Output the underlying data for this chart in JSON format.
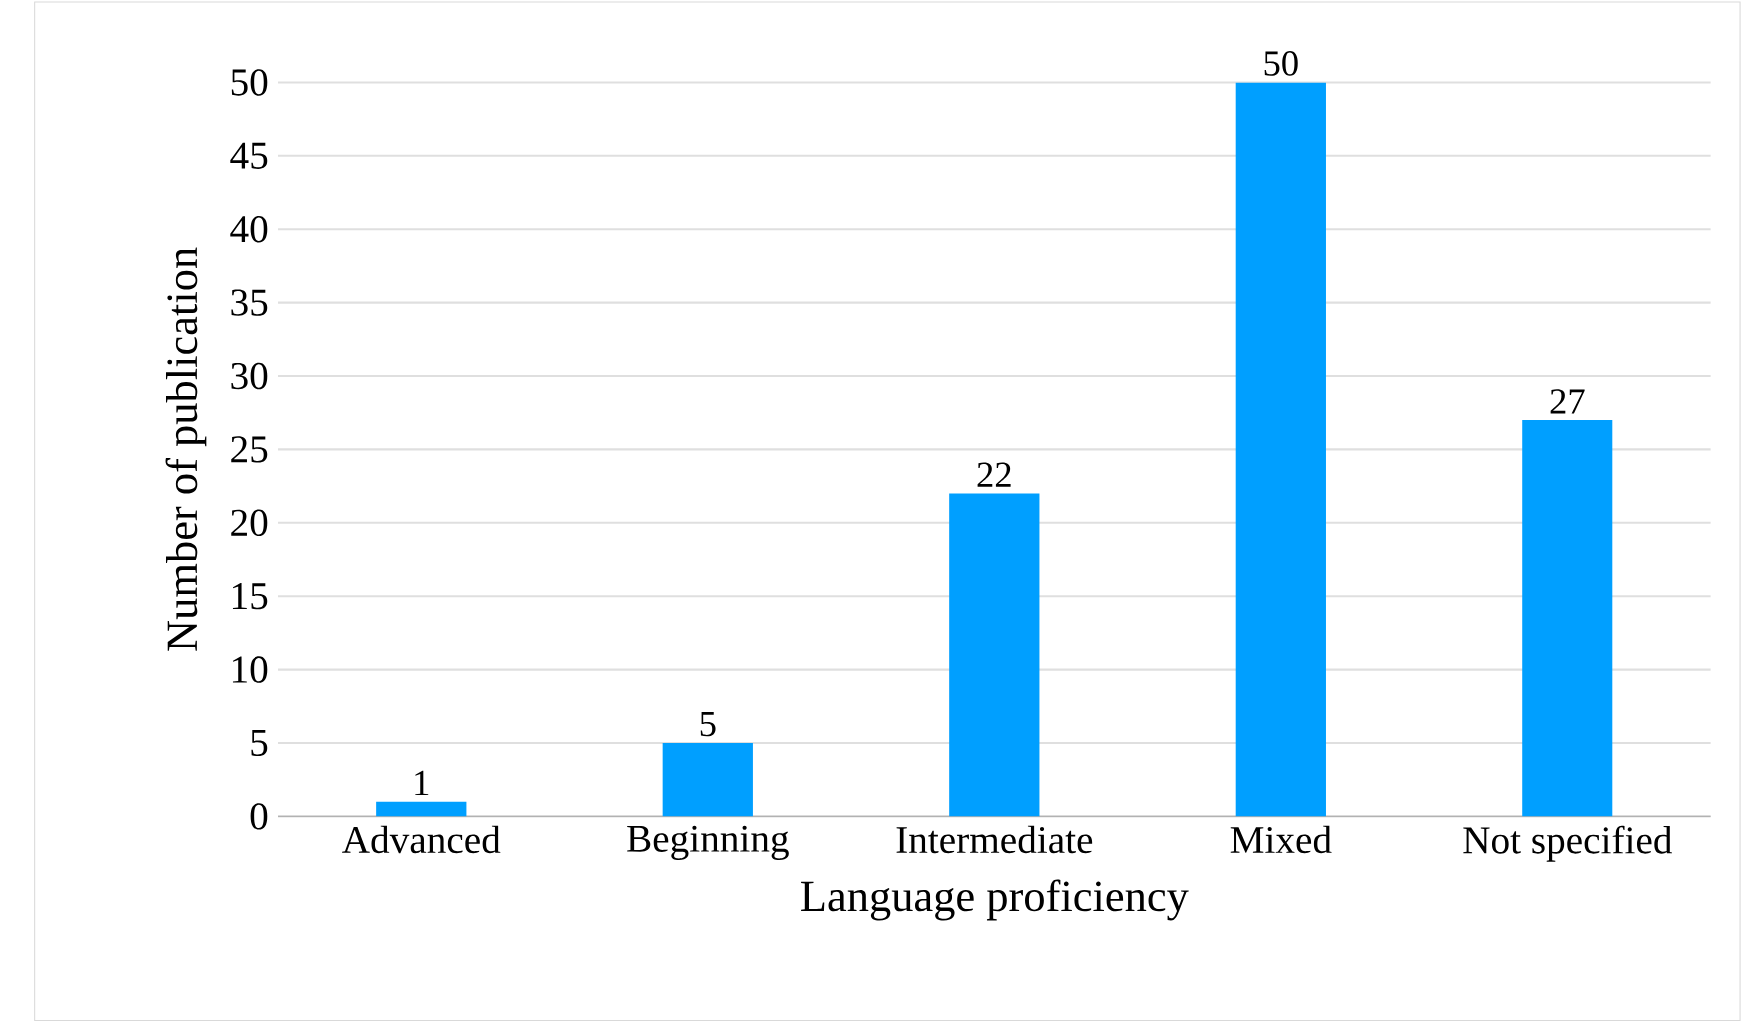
{
  "chart_data": {
    "type": "bar",
    "xlabel": "Language proficiency",
    "ylabel": "Number of publication",
    "categories": [
      "Advanced",
      "Beginning",
      "Intermediate",
      "Mixed",
      "Not specified"
    ],
    "values": [
      1,
      5,
      22,
      50,
      27
    ],
    "color": "#009fff",
    "ylim": [
      0,
      50
    ],
    "yticks": [
      0,
      5,
      10,
      15,
      20,
      25,
      30,
      35,
      40,
      45,
      50
    ],
    "grid": "y",
    "data_labels": true
  }
}
